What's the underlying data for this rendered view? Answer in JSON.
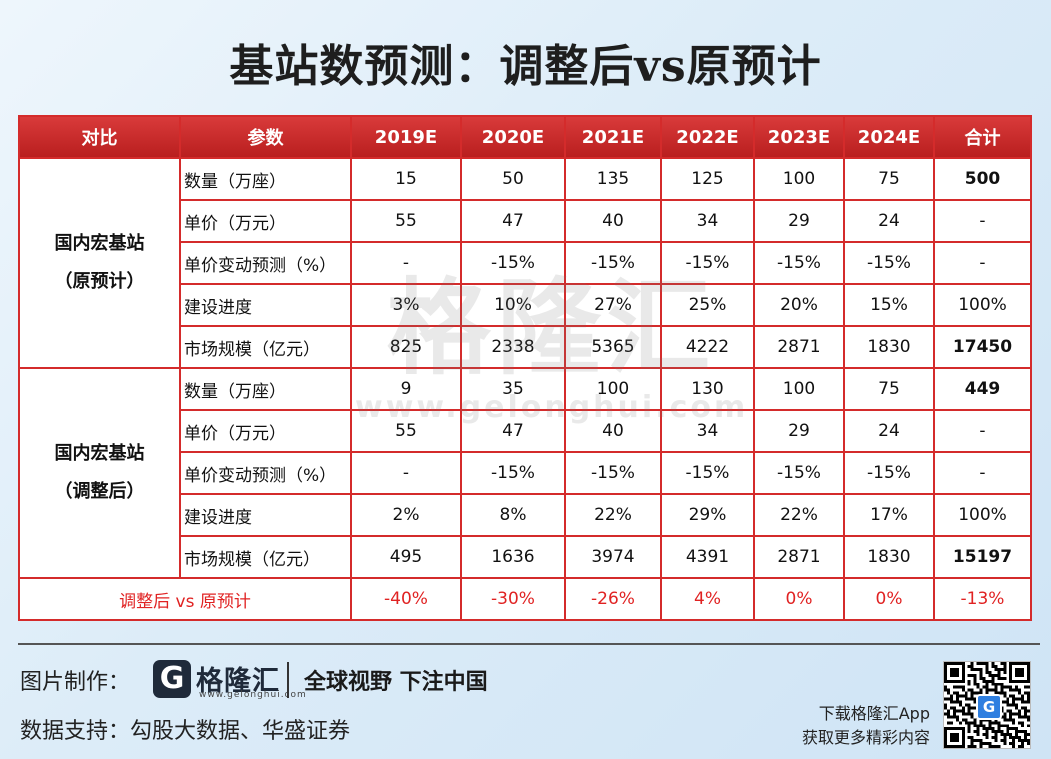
{
  "title": "基站数预测：调整后vs原预计",
  "watermark": {
    "text": "格隆汇",
    "url": "www.gelonghui.com"
  },
  "table": {
    "headers": [
      "对比",
      "参数",
      "2019E",
      "2020E",
      "2021E",
      "2022E",
      "2023E",
      "2024E",
      "合计"
    ],
    "groups": [
      {
        "label_line1": "国内宏基站",
        "label_line2": "（原预计）",
        "rows": [
          {
            "param": "数量（万座）",
            "values": [
              "15",
              "50",
              "135",
              "125",
              "100",
              "75"
            ],
            "total": "500"
          },
          {
            "param": "单价（万元）",
            "values": [
              "55",
              "47",
              "40",
              "34",
              "29",
              "24"
            ],
            "total": "-"
          },
          {
            "param": "单价变动预测（%）",
            "values": [
              "-",
              "-15%",
              "-15%",
              "-15%",
              "-15%",
              "-15%"
            ],
            "total": "-"
          },
          {
            "param": "建设进度",
            "values": [
              "3%",
              "10%",
              "27%",
              "25%",
              "20%",
              "15%"
            ],
            "total": "100%"
          },
          {
            "param": "市场规模（亿元）",
            "values": [
              "825",
              "2338",
              "5365",
              "4222",
              "2871",
              "1830"
            ],
            "total": "17450"
          }
        ]
      },
      {
        "label_line1": "国内宏基站",
        "label_line2": "（调整后）",
        "rows": [
          {
            "param": "数量（万座）",
            "values": [
              "9",
              "35",
              "100",
              "130",
              "100",
              "75"
            ],
            "total": "449"
          },
          {
            "param": "单价（万元）",
            "values": [
              "55",
              "47",
              "40",
              "34",
              "29",
              "24"
            ],
            "total": "-"
          },
          {
            "param": "单价变动预测（%）",
            "values": [
              "-",
              "-15%",
              "-15%",
              "-15%",
              "-15%",
              "-15%"
            ],
            "total": "-"
          },
          {
            "param": "建设进度",
            "values": [
              "2%",
              "8%",
              "22%",
              "29%",
              "22%",
              "17%"
            ],
            "total": "100%"
          },
          {
            "param": "市场规模（亿元）",
            "values": [
              "495",
              "1636",
              "3974",
              "4391",
              "2871",
              "1830"
            ],
            "total": "15197"
          }
        ]
      }
    ],
    "comparison": {
      "label": "调整后 vs 原预计",
      "values": [
        "-40%",
        "-30%",
        "-26%",
        "4%",
        "0%",
        "0%"
      ],
      "total": "-13%"
    }
  },
  "footer": {
    "made_by_label": "图片制作：",
    "logo_icon": "G",
    "logo_text": "格隆汇",
    "logo_url": "www.gelonghui.com",
    "slogan": "全球视野 下注中国",
    "data_label": "数据支持：",
    "data_source": "勾股大数据、华盛证券",
    "app_line1": "下载格隆汇App",
    "app_line2": "获取更多精彩内容",
    "qr_center": "G"
  },
  "colors": {
    "accent": "#d42b2b",
    "header_bg": "#c42626",
    "diff_text": "#e02222"
  }
}
